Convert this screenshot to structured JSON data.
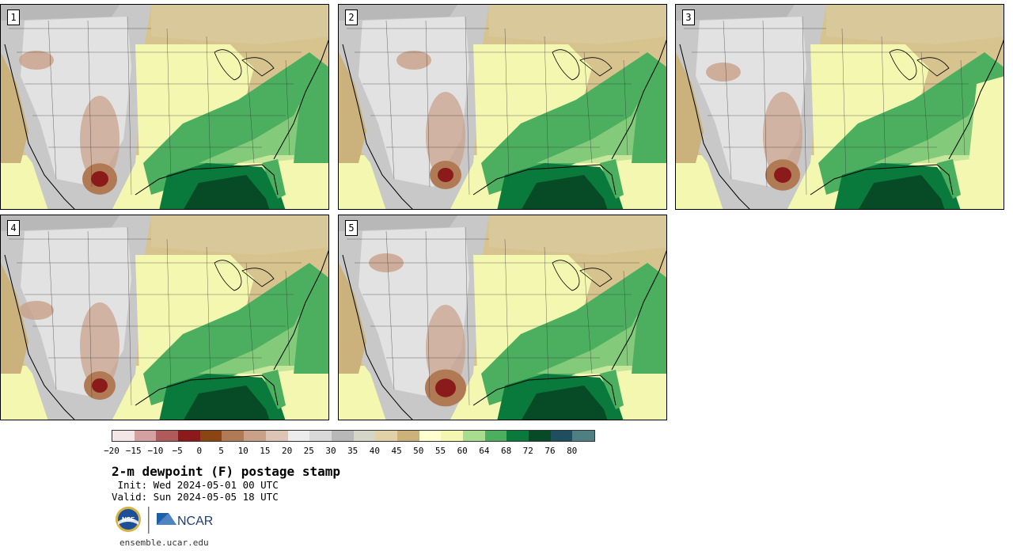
{
  "panels": [
    {
      "label": "1"
    },
    {
      "label": "2"
    },
    {
      "label": "3"
    },
    {
      "label": "4"
    },
    {
      "label": "5"
    }
  ],
  "legend": {
    "colors": [
      "#f3e6e6",
      "#d4a0a0",
      "#b05a5a",
      "#8b1a1a",
      "#8b4513",
      "#b07a55",
      "#c9a088",
      "#ddc4b4",
      "#ececec",
      "#d9d9d9",
      "#b8b8b8",
      "#d6d6c6",
      "#e0d2a6",
      "#ccb27a",
      "#ffffd0",
      "#f3f7b0",
      "#a8dc8e",
      "#4caf60",
      "#0a7a3c",
      "#064a26",
      "#1f4f5f",
      "#4f7f80"
    ],
    "ticks": [
      "−20",
      "−15",
      "−10",
      "−5",
      "0",
      "5",
      "10",
      "15",
      "20",
      "25",
      "30",
      "35",
      "40",
      "45",
      "50",
      "55",
      "60",
      "64",
      "68",
      "72",
      "76",
      "80"
    ]
  },
  "title": "2-m dewpoint (F) postage stamp",
  "init": " Init: Wed 2024-05-01 00 UTC",
  "valid": "Valid: Sun 2024-05-05 18 UTC",
  "logos": {
    "nsf": "NSF",
    "ncar": "NCAR"
  },
  "footer": "ensemble.ucar.edu"
}
